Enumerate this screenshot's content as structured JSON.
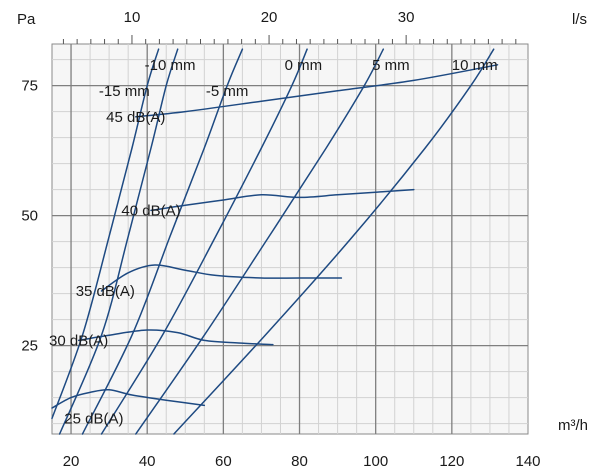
{
  "chart_data": {
    "type": "line",
    "title": "",
    "x_bottom": {
      "label": "m³/h",
      "range": [
        15,
        140
      ],
      "ticks": [
        20,
        40,
        60,
        80,
        100,
        120,
        140
      ]
    },
    "x_top": {
      "label": "l/s",
      "ticks": [
        10,
        20,
        30
      ],
      "factor": 3.6
    },
    "y_left": {
      "label": "Pa",
      "range": [
        8,
        83
      ],
      "ticks": [
        25,
        50,
        75
      ]
    },
    "grid": true,
    "colors": {
      "line": "#1e4a82",
      "background": "#f6f6f6",
      "grid_major": "#7f7f7f",
      "grid_minor": "#d2d2d2"
    },
    "series": [
      {
        "name": "-15 mm",
        "kind": "damper",
        "label_at": [
          34,
          74
        ],
        "points": [
          [
            15,
            11
          ],
          [
            23,
            27
          ],
          [
            30,
            46
          ],
          [
            36,
            63
          ],
          [
            40,
            75
          ],
          [
            43,
            82
          ]
        ]
      },
      {
        "name": "-10 mm",
        "kind": "damper",
        "label_at": [
          46,
          79
        ],
        "points": [
          [
            17,
            8
          ],
          [
            28,
            27
          ],
          [
            35,
            46
          ],
          [
            41,
            63
          ],
          [
            45,
            75
          ],
          [
            48,
            82
          ]
        ]
      },
      {
        "name": "-5 mm",
        "kind": "damper",
        "label_at": [
          61,
          74
        ],
        "points": [
          [
            23,
            8
          ],
          [
            36,
            27
          ],
          [
            46,
            46
          ],
          [
            55,
            63
          ],
          [
            61,
            75
          ],
          [
            65,
            82
          ]
        ]
      },
      {
        "name": "0 mm",
        "kind": "damper",
        "label_at": [
          81,
          79
        ],
        "points": [
          [
            28,
            8
          ],
          [
            44,
            27
          ],
          [
            58,
            46
          ],
          [
            70,
            63
          ],
          [
            78,
            75
          ],
          [
            82,
            82
          ]
        ]
      },
      {
        "name": "5 mm",
        "kind": "damper",
        "label_at": [
          104,
          79
        ],
        "points": [
          [
            37,
            8
          ],
          [
            55,
            27
          ],
          [
            72,
            46
          ],
          [
            87,
            63
          ],
          [
            97,
            75
          ],
          [
            102,
            82
          ]
        ]
      },
      {
        "name": "10 mm",
        "kind": "damper",
        "label_at": [
          126,
          79
        ],
        "points": [
          [
            47,
            8
          ],
          [
            71,
            27
          ],
          [
            94,
            46
          ],
          [
            113,
            63
          ],
          [
            125,
            75
          ],
          [
            131,
            82
          ]
        ]
      },
      {
        "name": "25 dB(A)",
        "kind": "sound",
        "label_at": [
          26,
          11
        ],
        "points": [
          [
            15,
            13
          ],
          [
            20,
            15
          ],
          [
            25,
            16
          ],
          [
            30,
            16.5
          ],
          [
            36,
            15.5
          ],
          [
            45,
            14.5
          ],
          [
            55,
            13.5
          ]
        ]
      },
      {
        "name": "30 dB(A)",
        "kind": "sound",
        "label_at": [
          22,
          26
        ],
        "points": [
          [
            22,
            26
          ],
          [
            30,
            27
          ],
          [
            40,
            28
          ],
          [
            48,
            27.5
          ],
          [
            55,
            26
          ],
          [
            64,
            25.5
          ],
          [
            73,
            25.2
          ]
        ]
      },
      {
        "name": "35 dB(A)",
        "kind": "sound",
        "label_at": [
          29,
          35.5
        ],
        "points": [
          [
            28,
            35.5
          ],
          [
            35,
            39
          ],
          [
            42,
            40.5
          ],
          [
            50,
            39.5
          ],
          [
            58,
            38.5
          ],
          [
            70,
            38
          ],
          [
            80,
            38
          ],
          [
            91,
            38
          ]
        ]
      },
      {
        "name": "40 dB(A)",
        "kind": "sound",
        "label_at": [
          41,
          51
        ],
        "points": [
          [
            41,
            51
          ],
          [
            50,
            52
          ],
          [
            60,
            53
          ],
          [
            70,
            54
          ],
          [
            80,
            53.5
          ],
          [
            90,
            54
          ],
          [
            100,
            54.5
          ],
          [
            110,
            55
          ]
        ]
      },
      {
        "name": "45 dB(A)",
        "kind": "sound",
        "label_at": [
          37,
          69
        ],
        "points": [
          [
            37,
            69
          ],
          [
            50,
            70
          ],
          [
            70,
            72
          ],
          [
            90,
            74
          ],
          [
            110,
            76
          ],
          [
            132,
            79
          ]
        ]
      }
    ]
  }
}
